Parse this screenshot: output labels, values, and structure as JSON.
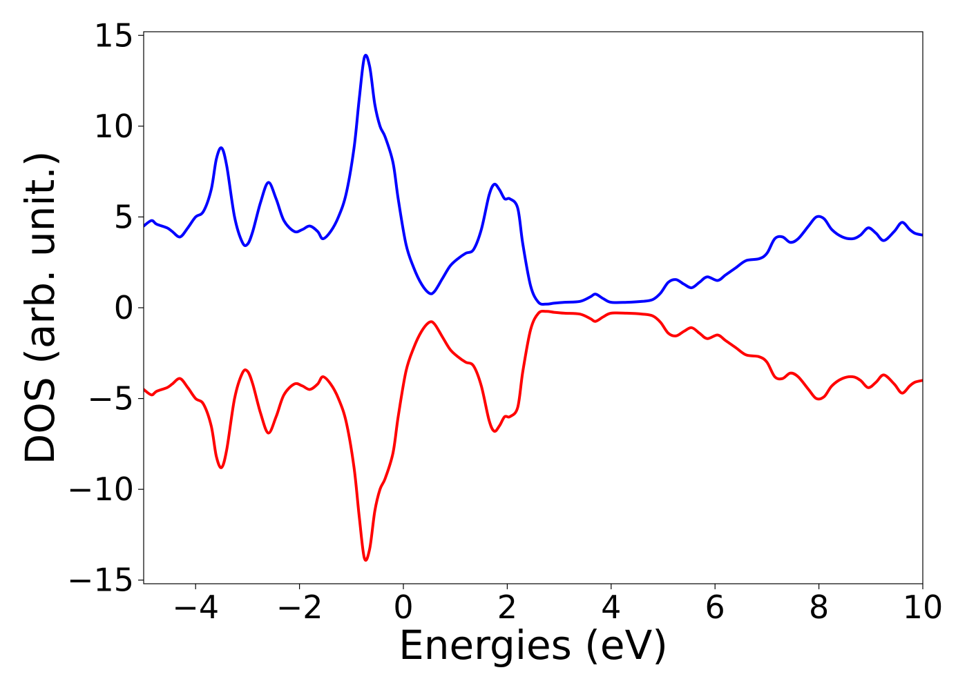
{
  "chart_data": {
    "type": "line",
    "title": "",
    "xlabel": "Energies (eV)",
    "ylabel": "DOS (arb. unit.)",
    "xlim": [
      -5,
      10
    ],
    "ylim": [
      -15.2,
      15.2
    ],
    "xticks": [
      -4,
      -2,
      0,
      2,
      4,
      6,
      8,
      10
    ],
    "xtick_labels": [
      "−4",
      "−2",
      "0",
      "2",
      "4",
      "6",
      "8",
      "10"
    ],
    "yticks": [
      15,
      10,
      5,
      0,
      -5,
      -10,
      -15
    ],
    "ytick_labels": [
      "15",
      "10",
      "5",
      "0",
      "−5",
      "−10",
      "−15"
    ],
    "grid": false,
    "legend": "none",
    "series": [
      {
        "color": "#0000ff",
        "x": [
          -5.0,
          -4.85,
          -4.75,
          -4.55,
          -4.45,
          -4.3,
          -4.15,
          -4.0,
          -3.85,
          -3.7,
          -3.6,
          -3.5,
          -3.4,
          -3.25,
          -3.1,
          -3.0,
          -2.9,
          -2.75,
          -2.6,
          -2.45,
          -2.3,
          -2.1,
          -1.95,
          -1.8,
          -1.65,
          -1.55,
          -1.4,
          -1.25,
          -1.1,
          -0.95,
          -0.85,
          -0.75,
          -0.65,
          -0.55,
          -0.45,
          -0.35,
          -0.2,
          -0.1,
          0.05,
          0.2,
          0.35,
          0.5,
          0.6,
          0.75,
          0.9,
          1.05,
          1.2,
          1.35,
          1.5,
          1.65,
          1.75,
          1.85,
          1.95,
          2.05,
          2.2,
          2.3,
          2.45,
          2.6,
          2.75,
          2.9,
          3.1,
          3.4,
          3.6,
          3.7,
          3.85,
          4.0,
          4.3,
          4.6,
          4.8,
          4.95,
          5.1,
          5.25,
          5.4,
          5.55,
          5.7,
          5.85,
          6.05,
          6.2,
          6.4,
          6.6,
          6.85,
          7.0,
          7.15,
          7.3,
          7.45,
          7.6,
          7.8,
          7.95,
          8.1,
          8.25,
          8.45,
          8.65,
          8.8,
          8.95,
          9.1,
          9.25,
          9.45,
          9.6,
          9.75,
          9.85,
          10.0
        ],
        "y": [
          4.5,
          4.8,
          4.6,
          4.4,
          4.2,
          3.9,
          4.4,
          5.0,
          5.3,
          6.5,
          8.2,
          8.8,
          7.8,
          5.0,
          3.6,
          3.5,
          4.2,
          5.8,
          6.9,
          6.0,
          4.8,
          4.2,
          4.3,
          4.5,
          4.2,
          3.8,
          4.2,
          5.0,
          6.3,
          8.8,
          11.5,
          13.8,
          13.3,
          11.2,
          10.0,
          9.4,
          8.0,
          6.0,
          3.5,
          2.2,
          1.3,
          0.8,
          0.9,
          1.6,
          2.3,
          2.7,
          3.0,
          3.2,
          4.3,
          6.2,
          6.8,
          6.5,
          6.0,
          6.0,
          5.5,
          3.5,
          1.2,
          0.3,
          0.2,
          0.25,
          0.3,
          0.35,
          0.6,
          0.75,
          0.5,
          0.3,
          0.3,
          0.35,
          0.45,
          0.8,
          1.4,
          1.55,
          1.3,
          1.1,
          1.4,
          1.7,
          1.5,
          1.8,
          2.2,
          2.6,
          2.7,
          3.0,
          3.8,
          3.9,
          3.6,
          3.8,
          4.5,
          5.0,
          4.9,
          4.3,
          3.9,
          3.8,
          4.0,
          4.4,
          4.1,
          3.7,
          4.2,
          4.7,
          4.3,
          4.1,
          4.0
        ]
      },
      {
        "color": "#ff0000",
        "x": [
          -5.0,
          -4.85,
          -4.75,
          -4.55,
          -4.45,
          -4.3,
          -4.15,
          -4.0,
          -3.85,
          -3.7,
          -3.6,
          -3.5,
          -3.4,
          -3.25,
          -3.1,
          -3.0,
          -2.9,
          -2.75,
          -2.6,
          -2.45,
          -2.3,
          -2.1,
          -1.95,
          -1.8,
          -1.65,
          -1.55,
          -1.4,
          -1.25,
          -1.1,
          -0.95,
          -0.85,
          -0.75,
          -0.65,
          -0.55,
          -0.45,
          -0.35,
          -0.2,
          -0.1,
          0.05,
          0.2,
          0.35,
          0.5,
          0.6,
          0.75,
          0.9,
          1.05,
          1.2,
          1.35,
          1.5,
          1.65,
          1.75,
          1.85,
          1.95,
          2.05,
          2.2,
          2.3,
          2.45,
          2.6,
          2.75,
          2.9,
          3.1,
          3.4,
          3.6,
          3.7,
          3.85,
          4.0,
          4.3,
          4.6,
          4.8,
          4.95,
          5.1,
          5.25,
          5.4,
          5.55,
          5.7,
          5.85,
          6.05,
          6.2,
          6.4,
          6.6,
          6.85,
          7.0,
          7.15,
          7.3,
          7.45,
          7.6,
          7.8,
          7.95,
          8.1,
          8.25,
          8.45,
          8.65,
          8.8,
          8.95,
          9.1,
          9.25,
          9.45,
          9.6,
          9.75,
          9.85,
          10.0
        ],
        "y": [
          -4.5,
          -4.8,
          -4.6,
          -4.4,
          -4.2,
          -3.9,
          -4.4,
          -5.0,
          -5.3,
          -6.5,
          -8.2,
          -8.8,
          -7.8,
          -5.0,
          -3.6,
          -3.5,
          -4.2,
          -5.8,
          -6.9,
          -6.0,
          -4.8,
          -4.2,
          -4.3,
          -4.5,
          -4.2,
          -3.8,
          -4.2,
          -5.0,
          -6.3,
          -8.8,
          -11.5,
          -13.8,
          -13.3,
          -11.2,
          -10.0,
          -9.4,
          -8.0,
          -6.0,
          -3.5,
          -2.2,
          -1.3,
          -0.8,
          -0.9,
          -1.6,
          -2.3,
          -2.7,
          -3.0,
          -3.2,
          -4.3,
          -6.2,
          -6.8,
          -6.5,
          -6.0,
          -6.0,
          -5.5,
          -3.5,
          -1.2,
          -0.3,
          -0.2,
          -0.25,
          -0.3,
          -0.35,
          -0.6,
          -0.75,
          -0.5,
          -0.3,
          -0.3,
          -0.35,
          -0.45,
          -0.8,
          -1.4,
          -1.55,
          -1.3,
          -1.1,
          -1.4,
          -1.7,
          -1.5,
          -1.8,
          -2.2,
          -2.6,
          -2.7,
          -3.0,
          -3.8,
          -3.9,
          -3.6,
          -3.8,
          -4.5,
          -5.0,
          -4.9,
          -4.3,
          -3.9,
          -3.8,
          -4.0,
          -4.4,
          -4.1,
          -3.7,
          -4.2,
          -4.7,
          -4.3,
          -4.1,
          -4.0
        ]
      }
    ]
  }
}
